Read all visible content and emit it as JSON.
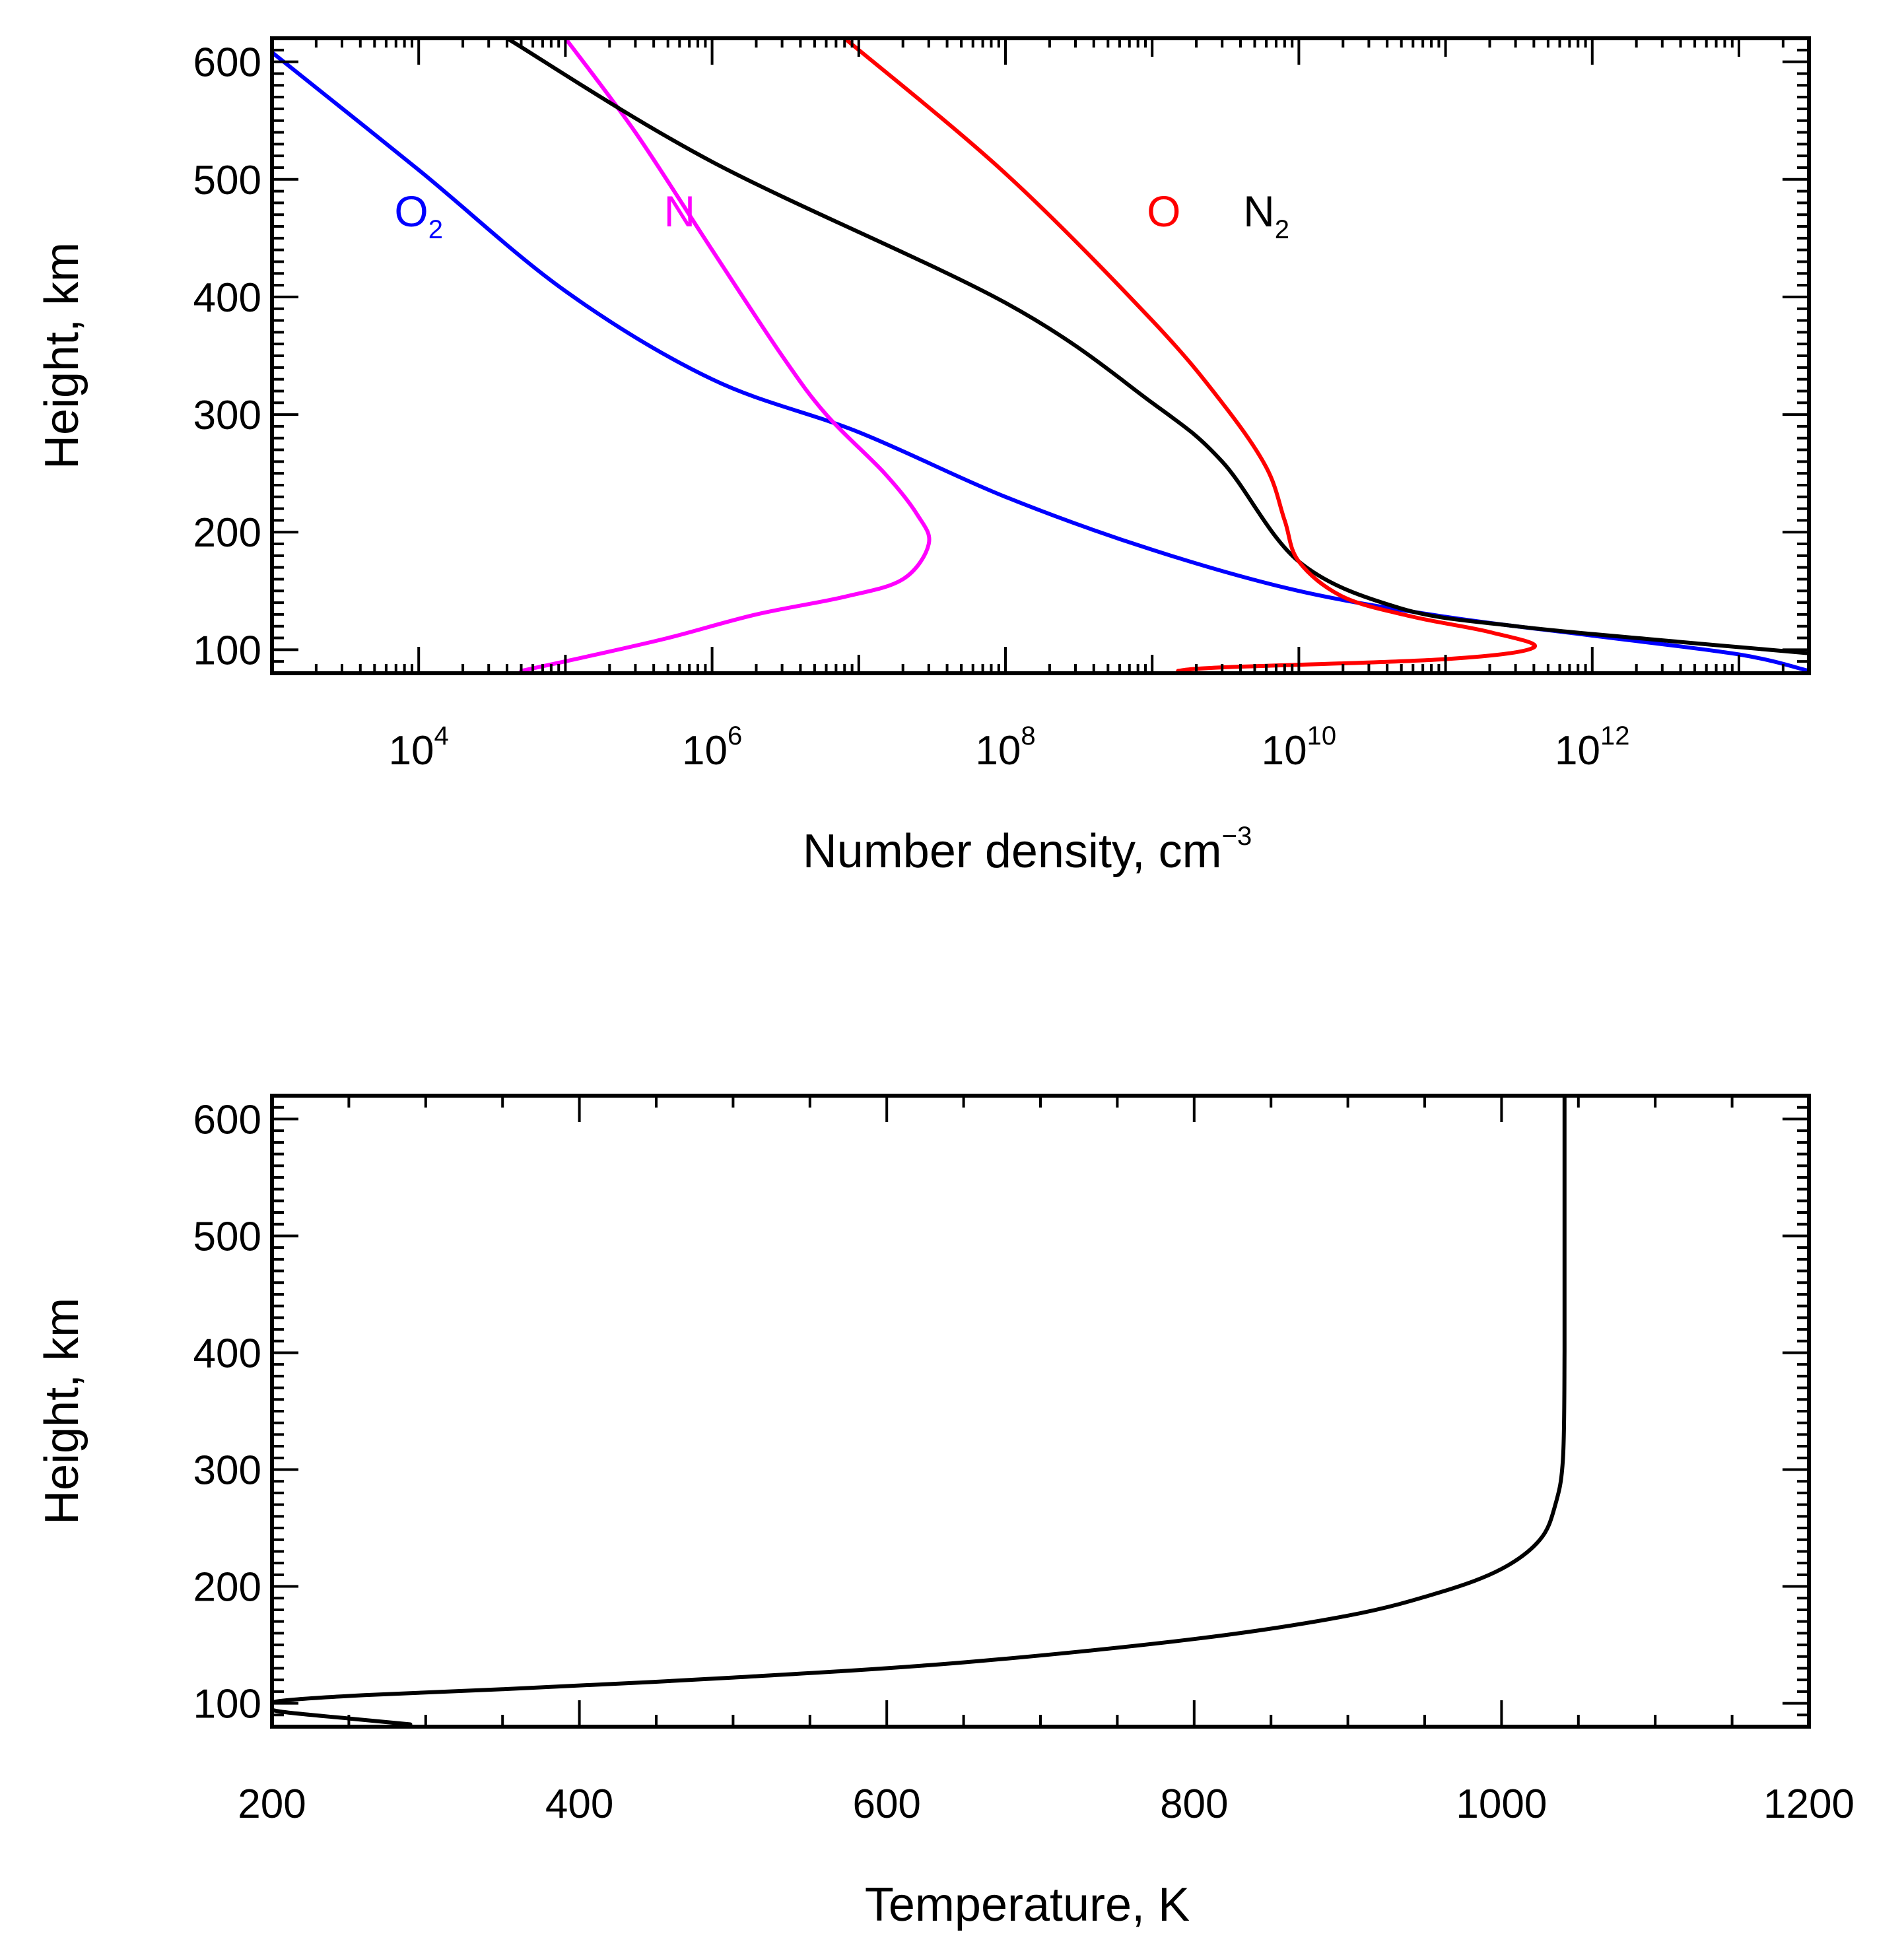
{
  "chart_data": [
    {
      "id": "density",
      "type": "line",
      "xscale": "log",
      "xlim": [
        1000,
        30000000000000
      ],
      "ylim": [
        80,
        620
      ],
      "xlabel": "Number density, cm",
      "xlabel_sup": "−3",
      "ylabel": "Height, km",
      "xticks": [
        {
          "value": 10000,
          "base": "10",
          "exp": "4"
        },
        {
          "value": 1000000,
          "base": "10",
          "exp": "6"
        },
        {
          "value": 100000000,
          "base": "10",
          "exp": "8"
        },
        {
          "value": 10000000000,
          "base": "10",
          "exp": "10"
        },
        {
          "value": 1000000000000,
          "base": "10",
          "exp": "12"
        }
      ],
      "yticks": [
        "100",
        "200",
        "300",
        "400",
        "500",
        "600"
      ],
      "series": [
        {
          "name": "O2",
          "label": "O",
          "label_sub": "2",
          "color": "#0000ff",
          "label_at": [
            10000.0,
            460
          ],
          "points": [
            [
              1000,
              608
            ],
            [
              10000,
              508
            ],
            [
              100000,
              405
            ],
            [
              1000000,
              330
            ],
            [
              10000000,
              285
            ],
            [
              100000000,
              230
            ],
            [
              1000000000,
              185
            ],
            [
              10000000000,
              150
            ],
            [
              100000000000,
              128
            ],
            [
              1000000000000,
              112
            ],
            [
              10000000000000,
              96
            ],
            [
              30000000000000,
              82
            ]
          ]
        },
        {
          "name": "N",
          "label": "N",
          "label_sub": "",
          "color": "#ff00ff",
          "label_at": [
            600000,
            460
          ],
          "points": [
            [
              100000,
              620
            ],
            [
              300000,
              540
            ],
            [
              1000000,
              440
            ],
            [
              3000000,
              350
            ],
            [
              6000000,
              300
            ],
            [
              15000000,
              250
            ],
            [
              25000000,
              215
            ],
            [
              30000000,
              190
            ],
            [
              20000000,
              160
            ],
            [
              8000000,
              145
            ],
            [
              2000000,
              130
            ],
            [
              500000,
              110
            ],
            [
              150000,
              95
            ],
            [
              50000,
              82
            ]
          ]
        },
        {
          "name": "N2",
          "label": "N",
          "label_sub": "2",
          "color": "#000000",
          "label_at": [
            6000000000,
            460
          ],
          "points": [
            [
              40000,
              620
            ],
            [
              1000000,
              515
            ],
            [
              100000000,
              395
            ],
            [
              1000000000,
              310
            ],
            [
              3000000000,
              260
            ],
            [
              10000000000,
              175
            ],
            [
              50000000000,
              135
            ],
            [
              300000000000,
              120
            ],
            [
              3000000000000,
              108
            ],
            [
              30000000000000,
              97
            ]
          ]
        },
        {
          "name": "O",
          "label": "O",
          "label_sub": "",
          "color": "#ff0000",
          "label_at": [
            1200000000,
            460
          ],
          "points": [
            [
              8000000,
              620
            ],
            [
              100000000,
              505
            ],
            [
              1000000000,
              380
            ],
            [
              3000000000,
              310
            ],
            [
              6000000000,
              255
            ],
            [
              8000000000,
              210
            ],
            [
              10000000000,
              175
            ],
            [
              20000000000,
              145
            ],
            [
              60000000000,
              128
            ],
            [
              200000000000,
              115
            ],
            [
              400000000000,
              102
            ],
            [
              100000000000,
              92
            ],
            [
              3000000000,
              85
            ],
            [
              1500000000,
              82
            ]
          ]
        }
      ]
    },
    {
      "id": "temperature",
      "type": "line",
      "xscale": "linear",
      "xlim": [
        200,
        1200
      ],
      "ylim": [
        80,
        620
      ],
      "xlabel": "Temperature, K",
      "ylabel": "Height, km",
      "xticks": [
        "200",
        "400",
        "600",
        "800",
        "1000",
        "1200"
      ],
      "yticks": [
        "100",
        "200",
        "300",
        "400",
        "500",
        "600"
      ],
      "series": [
        {
          "name": "Temperature",
          "color": "#000000",
          "points": [
            [
              290,
              82
            ],
            [
              250,
              87
            ],
            [
              205,
              93
            ],
            [
              200,
              97
            ],
            [
              205,
              102
            ],
            [
              260,
              107
            ],
            [
              350,
              112
            ],
            [
              500,
              122
            ],
            [
              650,
              135
            ],
            [
              800,
              155
            ],
            [
              900,
              175
            ],
            [
              960,
              195
            ],
            [
              1000,
              215
            ],
            [
              1025,
              240
            ],
            [
              1035,
              270
            ],
            [
              1040,
              310
            ],
            [
              1041,
              400
            ],
            [
              1041,
              500
            ],
            [
              1041,
              620
            ]
          ]
        }
      ]
    }
  ]
}
